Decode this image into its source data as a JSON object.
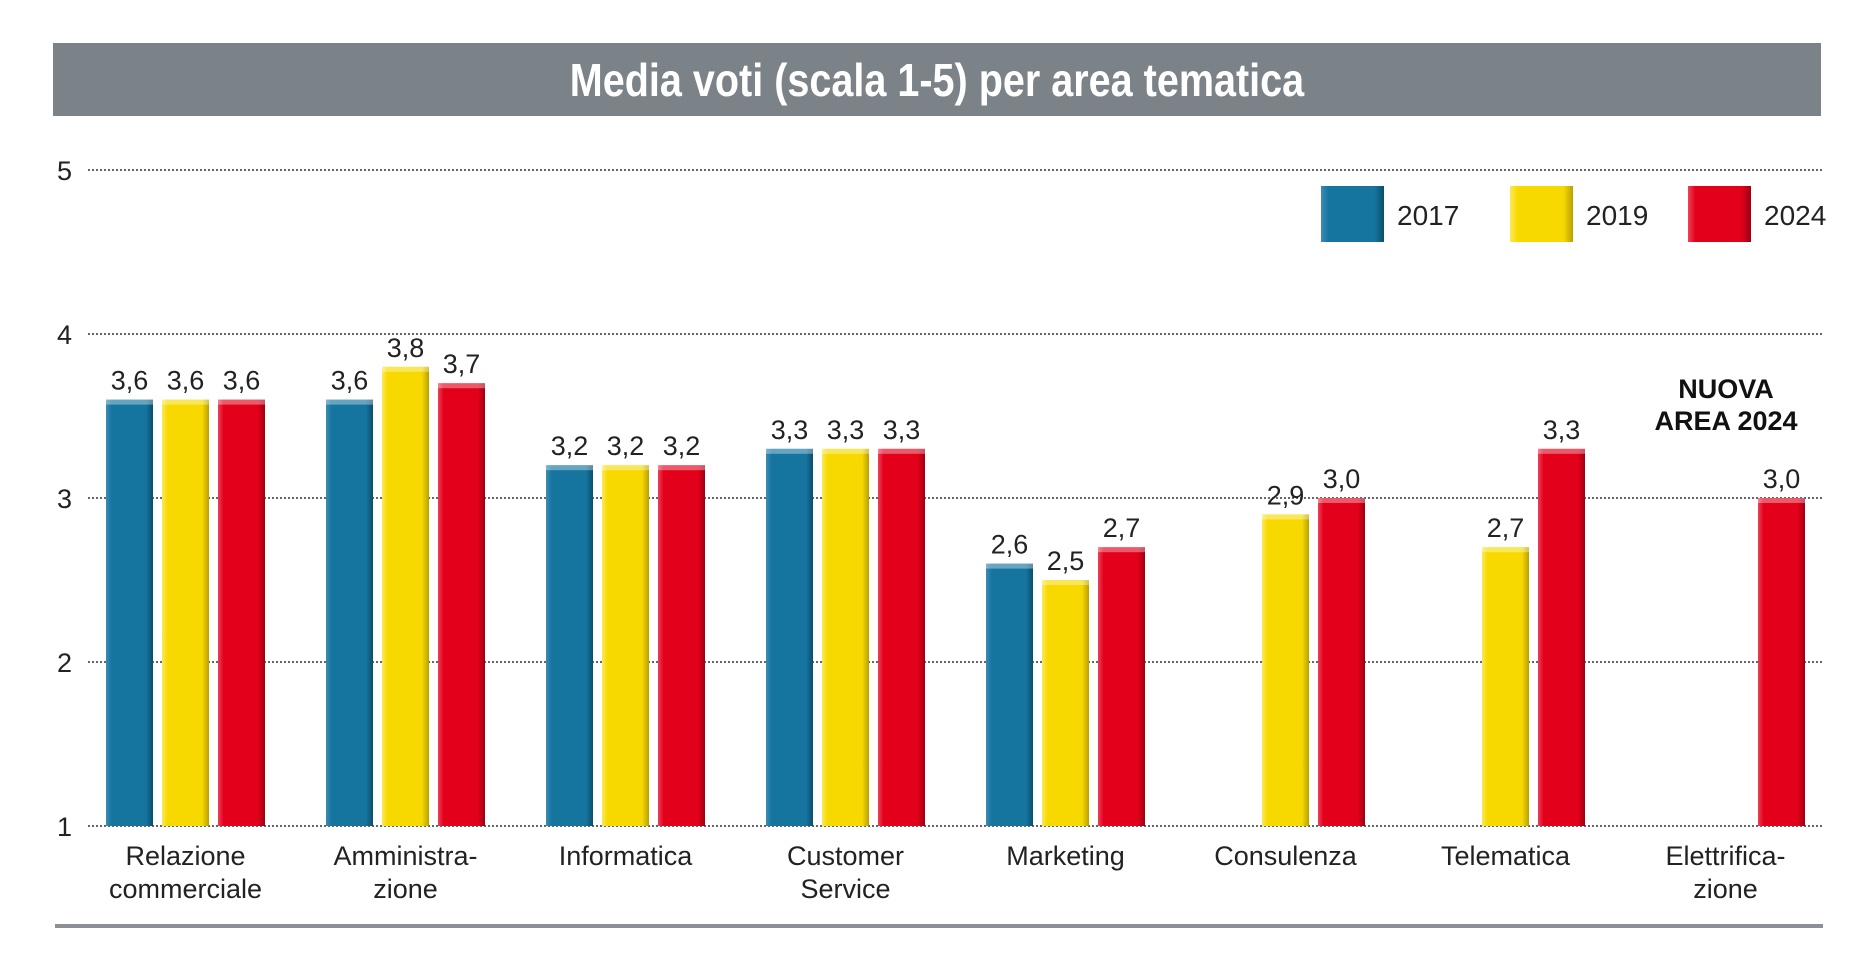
{
  "chart_data": {
    "type": "bar",
    "title": "Media voti (scala 1-5) per area tematica",
    "xlabel": "",
    "ylabel": "",
    "ylim": [
      1,
      5
    ],
    "yticks": [
      "1",
      "2",
      "3",
      "4",
      "5"
    ],
    "grid": true,
    "legend_position": "top-right",
    "categories": [
      [
        "Relazione",
        "commerciale"
      ],
      [
        "Amministra-",
        "zione"
      ],
      [
        "Informatica"
      ],
      [
        "Customer",
        "Service"
      ],
      [
        "Marketing"
      ],
      [
        "Consulenza"
      ],
      [
        "Telematica"
      ],
      [
        "Elettrifica-",
        "zione"
      ]
    ],
    "series": [
      {
        "name": "2017",
        "color": "#15759f",
        "values": [
          3.6,
          3.6,
          3.2,
          3.3,
          2.6,
          null,
          null,
          null
        ],
        "labels": [
          "3,6",
          "3,6",
          "3,2",
          "3,3",
          "2,6",
          null,
          null,
          null
        ]
      },
      {
        "name": "2019",
        "color": "#f7d900",
        "values": [
          3.6,
          3.8,
          3.2,
          3.3,
          2.5,
          2.9,
          2.7,
          null
        ],
        "labels": [
          "3,6",
          "3,8",
          "3,2",
          "3,3",
          "2,5",
          "2,9",
          "2,7",
          null
        ]
      },
      {
        "name": "2024",
        "color": "#e2001a",
        "values": [
          3.6,
          3.7,
          3.2,
          3.3,
          2.7,
          3.0,
          3.3,
          3.0
        ],
        "labels": [
          "3,6",
          "3,7",
          "3,2",
          "3,3",
          "2,7",
          "3,0",
          "3,3",
          "3,0"
        ]
      }
    ],
    "annotation": {
      "lines": [
        "NUOVA",
        "AREA 2024"
      ]
    }
  }
}
